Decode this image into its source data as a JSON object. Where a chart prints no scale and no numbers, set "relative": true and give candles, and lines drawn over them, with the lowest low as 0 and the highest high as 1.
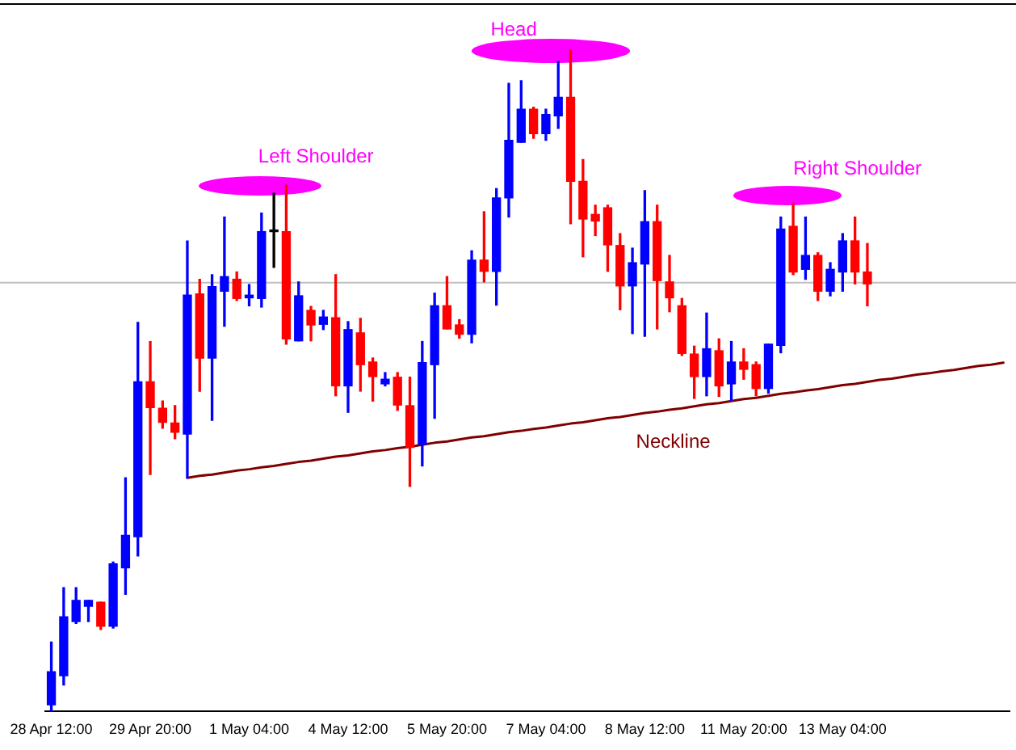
{
  "chart_data": {
    "type": "candlestick",
    "relative": true,
    "tick_labels": "x",
    "categories": [
      "28 Apr 12:00",
      null,
      null,
      null,
      null,
      null,
      null,
      null,
      "29 Apr 20:00",
      null,
      null,
      null,
      null,
      null,
      null,
      null,
      "1 May 04:00",
      null,
      null,
      null,
      null,
      null,
      null,
      null,
      "4 May 12:00",
      null,
      null,
      null,
      null,
      null,
      null,
      null,
      "5 May 20:00",
      null,
      null,
      null,
      null,
      null,
      null,
      null,
      "7 May 04:00",
      null,
      null,
      null,
      null,
      null,
      null,
      null,
      "8 May 12:00",
      null,
      null,
      null,
      null,
      null,
      null,
      null,
      "11 May 20:00",
      null,
      null,
      null,
      null,
      null,
      null,
      null,
      "13 May 04:00",
      null,
      null,
      null,
      null,
      null,
      null,
      null,
      null,
      null,
      null,
      null,
      null,
      null
    ],
    "ohlc": [
      [
        0.01,
        0.105,
        0,
        0.06
      ],
      [
        0.054,
        0.187,
        0.04,
        0.143
      ],
      [
        0.136,
        0.187,
        0.133,
        0.168
      ],
      [
        0.159,
        0.168,
        0.136,
        0.168
      ],
      [
        0.165,
        0.165,
        0.124,
        0.129
      ],
      [
        0.129,
        0.226,
        0.126,
        0.223
      ],
      [
        0.217,
        0.353,
        0.177,
        0.266
      ],
      [
        0.264,
        0.588,
        0.235,
        0.498
      ],
      [
        0.498,
        0.559,
        0.358,
        0.459
      ],
      [
        0.458,
        0.469,
        0.428,
        0.437
      ],
      [
        0.436,
        0.462,
        0.412,
        0.422
      ],
      [
        0.419,
        0.711,
        0.353,
        0.629
      ],
      [
        0.631,
        0.653,
        0.484,
        0.534
      ],
      [
        0.534,
        0.66,
        0.44,
        0.642
      ],
      [
        0.635,
        0.747,
        0.582,
        0.657
      ],
      [
        0.653,
        0.664,
        0.621,
        0.624
      ],
      [
        0.625,
        0.645,
        0.613,
        0.629
      ],
      [
        0.624,
        0.753,
        0.611,
        0.725
      ],
      [
        0.725,
        0.783,
        0.671,
        0.725
      ],
      [
        0.725,
        0.795,
        0.555,
        0.563
      ],
      [
        0.56,
        0.649,
        0.56,
        0.628
      ],
      [
        0.606,
        0.612,
        0.56,
        0.584
      ],
      [
        0.585,
        0.606,
        0.577,
        0.596
      ],
      [
        0.595,
        0.66,
        0.477,
        0.492
      ],
      [
        0.492,
        0.589,
        0.452,
        0.577
      ],
      [
        0.572,
        0.594,
        0.484,
        0.524
      ],
      [
        0.528,
        0.534,
        0.469,
        0.506
      ],
      [
        0.495,
        0.512,
        0.492,
        0.502
      ],
      [
        0.505,
        0.512,
        0.455,
        0.463
      ],
      [
        0.462,
        0.505,
        0.34,
        0.399
      ],
      [
        0.404,
        0.559,
        0.371,
        0.527
      ],
      [
        0.524,
        0.632,
        0.443,
        0.613
      ],
      [
        0.613,
        0.657,
        0.578,
        0.578
      ],
      [
        0.584,
        0.592,
        0.564,
        0.57
      ],
      [
        0.57,
        0.696,
        0.557,
        0.682
      ],
      [
        0.682,
        0.755,
        0.649,
        0.665
      ],
      [
        0.665,
        0.79,
        0.614,
        0.776
      ],
      [
        0.776,
        0.949,
        0.747,
        0.863
      ],
      [
        0.86,
        0.953,
        0.86,
        0.91
      ],
      [
        0.91,
        0.913,
        0.866,
        0.873
      ],
      [
        0.873,
        0.91,
        0.863,
        0.902
      ],
      [
        0.9,
        0.982,
        0.881,
        0.928
      ],
      [
        0.928,
        1,
        0.737,
        0.801
      ],
      [
        0.801,
        0.834,
        0.687,
        0.744
      ],
      [
        0.751,
        0.765,
        0.719,
        0.741
      ],
      [
        0.761,
        0.765,
        0.665,
        0.705
      ],
      [
        0.704,
        0.722,
        0.607,
        0.643
      ],
      [
        0.643,
        0.7,
        0.571,
        0.678
      ],
      [
        0.676,
        0.787,
        0.567,
        0.74
      ],
      [
        0.74,
        0.765,
        0.578,
        0.651
      ],
      [
        0.649,
        0.689,
        0.604,
        0.625
      ],
      [
        0.613,
        0.624,
        0.538,
        0.541
      ],
      [
        0.54,
        0.552,
        0.473,
        0.506
      ],
      [
        0.506,
        0.602,
        0.477,
        0.548
      ],
      [
        0.545,
        0.563,
        0.476,
        0.492
      ],
      [
        0.495,
        0.559,
        0.47,
        0.528
      ],
      [
        0.528,
        0.548,
        0.502,
        0.517
      ],
      [
        0.524,
        0.528,
        0.477,
        0.488
      ],
      [
        0.488,
        0.555,
        0.481,
        0.555
      ],
      [
        0.553,
        0.747,
        0.542,
        0.729
      ],
      [
        0.733,
        0.768,
        0.66,
        0.664
      ],
      [
        0.668,
        0.747,
        0.653,
        0.689
      ],
      [
        0.689,
        0.693,
        0.621,
        0.635
      ],
      [
        0.635,
        0.678,
        0.628,
        0.668
      ],
      [
        0.664,
        0.722,
        0.635,
        0.711
      ],
      [
        0.711,
        0.747,
        0.646,
        0.664
      ],
      [
        0.664,
        0.707,
        0.613,
        0.646
      ],
      null,
      null,
      null,
      null,
      null,
      null,
      null,
      null,
      null,
      null,
      null
    ],
    "colors": [
      "#0000ff",
      "#0000ff",
      "#0000ff",
      "#0000ff",
      "#ff0000",
      "#0000ff",
      "#0000ff",
      "#0000ff",
      "#ff0000",
      "#ff0000",
      "#ff0000",
      "#0000ff",
      "#ff0000",
      "#0000ff",
      "#0000ff",
      "#ff0000",
      "#0000ff",
      "#0000ff",
      "#000000",
      "#ff0000",
      "#0000ff",
      "#ff0000",
      "#0000ff",
      "#ff0000",
      "#0000ff",
      "#ff0000",
      "#ff0000",
      "#0000ff",
      "#ff0000",
      "#ff0000",
      "#0000ff",
      "#0000ff",
      "#ff0000",
      "#ff0000",
      "#0000ff",
      "#ff0000",
      "#0000ff",
      "#0000ff",
      "#0000ff",
      "#ff0000",
      "#0000ff",
      "#0000ff",
      "#ff0000",
      "#ff0000",
      "#ff0000",
      "#ff0000",
      "#ff0000",
      "#0000ff",
      "#0000ff",
      "#ff0000",
      "#ff0000",
      "#ff0000",
      "#ff0000",
      "#0000ff",
      "#ff0000",
      "#0000ff",
      "#ff0000",
      "#ff0000",
      "#0000ff",
      "#0000ff",
      "#ff0000",
      "#0000ff",
      "#ff0000",
      "#0000ff",
      "#0000ff",
      "#ff0000",
      "#ff0000",
      null,
      null,
      null,
      null,
      null,
      null,
      null,
      null,
      null,
      null,
      null
    ],
    "series": [
      {
        "name": "Neckline",
        "type": "line",
        "color": "#800000",
        "values": [
          null,
          null,
          null,
          null,
          null,
          null,
          null,
          null,
          null,
          null,
          null,
          0.353,
          0.356,
          0.358,
          0.361,
          0.364,
          0.366,
          0.369,
          0.371,
          0.374,
          0.377,
          0.379,
          0.382,
          0.385,
          0.387,
          0.39,
          0.393,
          0.395,
          0.398,
          0.4,
          0.403,
          0.406,
          0.408,
          0.411,
          0.414,
          0.416,
          0.419,
          0.422,
          0.424,
          0.427,
          0.429,
          0.432,
          0.435,
          0.437,
          0.44,
          0.443,
          0.445,
          0.448,
          0.451,
          0.453,
          0.456,
          0.458,
          0.461,
          0.464,
          0.466,
          0.469,
          0.472,
          0.474,
          0.477,
          0.48,
          0.482,
          0.485,
          0.487,
          0.49,
          0.493,
          0.495,
          0.498,
          0.501,
          0.503,
          0.506,
          0.509,
          0.511,
          0.514,
          0.516,
          0.519,
          0.522,
          0.524,
          0.527
        ]
      }
    ],
    "ref_lines": [
      {
        "axis": "y",
        "value": 0.648,
        "color": "#c0c0c0"
      }
    ],
    "annotations": [
      "Left Shoulder",
      "Head",
      "Right Shoulder"
    ]
  }
}
